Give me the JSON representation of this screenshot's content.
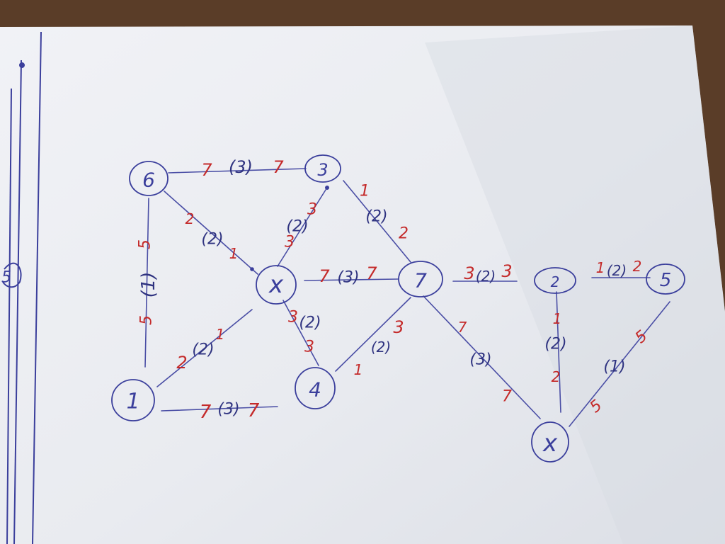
{
  "colors": {
    "ink_blue": "#3b3f9c",
    "ink_red": "#c42a2a",
    "paper": "#eceef3",
    "table": "#5a3d28"
  },
  "nodes": [
    {
      "id": "n6",
      "label": "6"
    },
    {
      "id": "n3",
      "label": "3"
    },
    {
      "id": "nx1",
      "label": "x"
    },
    {
      "id": "n7",
      "label": "7"
    },
    {
      "id": "n2",
      "label": "2"
    },
    {
      "id": "n5",
      "label": "5"
    },
    {
      "id": "n1",
      "label": "1"
    },
    {
      "id": "n4",
      "label": "4"
    },
    {
      "id": "nx2",
      "label": "x"
    },
    {
      "id": "n5edge",
      "label": "5"
    }
  ],
  "edges": [
    {
      "from": "n6",
      "to": "n3",
      "blue": "(3)",
      "red_a": "7",
      "red_b": "7"
    },
    {
      "from": "n6",
      "to": "nx1",
      "blue": "(2)",
      "red_a": "2",
      "red_b": "1"
    },
    {
      "from": "n6",
      "to": "n1",
      "blue": "(1)",
      "red_a": "5",
      "red_b": "5"
    },
    {
      "from": "n3",
      "to": "nx1",
      "blue": "(2)",
      "red_a": "3",
      "red_b": "3"
    },
    {
      "from": "n3",
      "to": "n7",
      "blue": "(2)",
      "red_a": "1",
      "red_b": "2"
    },
    {
      "from": "nx1",
      "to": "n7",
      "blue": "(3)",
      "red_a": "7",
      "red_b": "7"
    },
    {
      "from": "nx1",
      "to": "n1",
      "blue": "(2)",
      "red_a": "2",
      "red_b": "1"
    },
    {
      "from": "nx1",
      "to": "n4",
      "blue": "(2)",
      "red_a": "3",
      "red_b": "3"
    },
    {
      "from": "n7",
      "to": "n4",
      "blue": "(2)",
      "red_a": "3",
      "red_b": "1"
    },
    {
      "from": "n7",
      "to": "n2",
      "blue": "(2)",
      "red_a": "3",
      "red_b": "3"
    },
    {
      "from": "n7",
      "to": "nx2",
      "blue": "(3)",
      "red_a": "7",
      "red_b": "7"
    },
    {
      "from": "n2",
      "to": "n5",
      "blue": "(2)",
      "red_a": "1",
      "red_b": "2"
    },
    {
      "from": "n2",
      "to": "nx2",
      "blue": "(2)",
      "red_a": "1",
      "red_b": "2"
    },
    {
      "from": "n5",
      "to": "nx2",
      "blue": "(1)",
      "red_a": "5",
      "red_b": "5"
    },
    {
      "from": "n1",
      "to": "dangling",
      "blue": "(3)",
      "red_a": "7",
      "red_b": "7"
    }
  ]
}
